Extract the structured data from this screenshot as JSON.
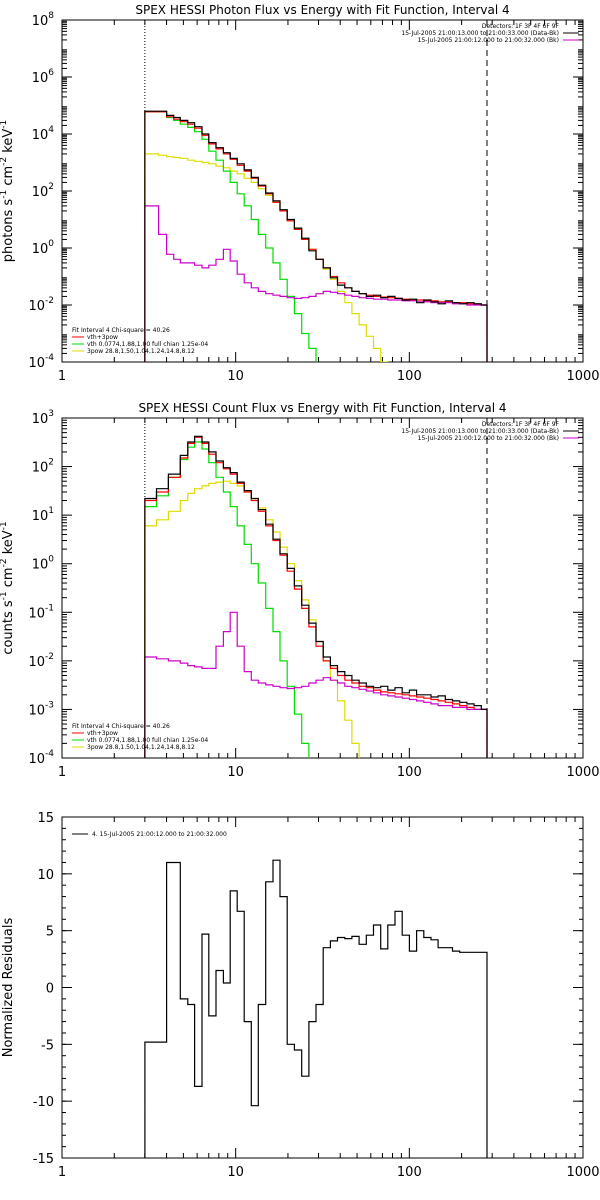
{
  "chart_data": [
    {
      "type": "line",
      "title": "SPEX HESSI Photon Flux vs Energy with Fit Function, Interval 4",
      "ylabel_parts": [
        "photons s",
        "-1",
        " cm",
        "-2",
        " keV",
        "-1"
      ],
      "xscale": "log",
      "yscale": "log",
      "xlim": [
        1,
        1000
      ],
      "ylim": [
        0.0001,
        100000000
      ],
      "x_ticks": [
        {
          "v": 1,
          "label": "1"
        },
        {
          "v": 10,
          "label": "10"
        },
        {
          "v": 100,
          "label": "100"
        },
        {
          "v": 1000,
          "label": "1000"
        }
      ],
      "y_ticks": [
        {
          "v": 0.0001,
          "b": "10",
          "e": "-4"
        },
        {
          "v": 0.01,
          "b": "10",
          "e": "-2"
        },
        {
          "v": 1,
          "b": "10",
          "e": "0"
        },
        {
          "v": 100,
          "b": "10",
          "e": "2"
        },
        {
          "v": 10000,
          "b": "10",
          "e": "4"
        },
        {
          "v": 1000000,
          "b": "10",
          "e": "6"
        },
        {
          "v": 100000000,
          "b": "10",
          "e": "8"
        }
      ],
      "vlines": [
        {
          "x": 3,
          "style": "dotted"
        },
        {
          "x": 280,
          "style": "dashed"
        }
      ],
      "legend_right": {
        "lines": [
          {
            "text": "Detectors: 1F 3F 4F 6F 9F",
            "color": null
          },
          {
            "text": "15-Jul-2005 21:00:13.000 to 21:00:33.000 (Data-Bk)",
            "color": "#000000"
          },
          {
            "text": "15-Jul-2005 21:00:12.000 to 21:00:32.000 (Bk)",
            "color": "#cc00cc"
          }
        ]
      },
      "legend_left": {
        "header": "Fit Interval 4   Chi-square = 40.26",
        "lines": [
          {
            "text": "vth+3pow",
            "color": "#ff0000"
          },
          {
            "text": "vth 0.0774,1.88,1.00  full chian 1.25e-04",
            "color": "#00dd00"
          },
          {
            "text": "3pow 28.8,1.50,1.04,1.24,14.8,8.12",
            "color": "#dddd00"
          }
        ]
      },
      "x_edges": [
        3.0,
        3.3,
        3.6,
        4.0,
        4.4,
        4.8,
        5.3,
        5.8,
        6.4,
        7.0,
        7.7,
        8.5,
        9.3,
        10.2,
        11.2,
        12.3,
        13.5,
        14.9,
        16.4,
        18.0,
        19.8,
        21.8,
        24.0,
        26.4,
        29.0,
        31.9,
        35.1,
        38.6,
        42.5,
        46.7,
        51.4,
        56.5,
        62.2,
        68.4,
        75.2,
        82.7,
        91.0,
        100.1,
        110.1,
        121.1,
        133.2,
        146.5,
        161.2,
        177.3,
        195.0,
        214.5,
        236.0,
        259.6,
        280.0
      ],
      "series": [
        {
          "name": "vth+3pow",
          "color": "#ff0000",
          "values": [
            60000,
            60000,
            60000,
            40000,
            33000,
            27000,
            22000,
            16000,
            9000,
            4500,
            3000,
            2000,
            1300,
            800,
            500,
            280,
            150,
            80,
            40,
            20,
            9,
            4.5,
            2,
            0.9,
            0.4,
            0.2,
            0.1,
            0.06,
            0.04,
            0.03,
            0.025,
            0.022,
            0.02,
            0.019,
            0.018,
            0.017,
            0.016,
            0.015,
            0.015,
            0.014,
            0.014,
            0.013,
            0.013,
            0.012,
            0.012,
            0.011,
            0.011,
            0.01
          ]
        },
        {
          "name": "data",
          "color": "#000000",
          "values": [
            63000,
            63000,
            63000,
            45000,
            38000,
            30000,
            25000,
            18000,
            10000,
            5000,
            3300,
            2200,
            1400,
            900,
            550,
            300,
            160,
            85,
            45,
            22,
            10,
            5,
            2.2,
            0.8,
            0.4,
            0.2,
            0.09,
            0.05,
            0.04,
            0.03,
            0.025,
            0.02,
            0.022,
            0.018,
            0.02,
            0.017,
            0.015,
            0.016,
            0.012,
            0.015,
            0.013,
            0.011,
            0.014,
            0.012,
            0.011,
            0.012,
            0.011,
            0.01
          ]
        },
        {
          "name": "vth",
          "color": "#00dd00",
          "values": [
            60000,
            60000,
            60000,
            38000,
            30000,
            22000,
            17000,
            12000,
            6500,
            2500,
            1200,
            500,
            200,
            80,
            30,
            10,
            3,
            1,
            0.3,
            0.08,
            0.02,
            0.005,
            0.001,
            0.0003,
            5e-05
          ]
        },
        {
          "name": "3pow",
          "color": "#dddd00",
          "values": [
            2000,
            2000,
            1800,
            1600,
            1500,
            1400,
            1200,
            1100,
            1000,
            900,
            750,
            650,
            500,
            400,
            280,
            200,
            120,
            70,
            40,
            20,
            9,
            4.5,
            2,
            0.9,
            0.4,
            0.18,
            0.08,
            0.03,
            0.012,
            0.005,
            0.002,
            0.0008,
            0.0003,
            0.0001,
            4e-05
          ]
        },
        {
          "name": "background",
          "color": "#cc00cc",
          "values": [
            30,
            30,
            3,
            0.6,
            0.4,
            0.3,
            0.3,
            0.25,
            0.2,
            0.25,
            0.4,
            0.9,
            0.35,
            0.12,
            0.06,
            0.04,
            0.03,
            0.025,
            0.022,
            0.02,
            0.018,
            0.017,
            0.018,
            0.02,
            0.025,
            0.03,
            0.028,
            0.025,
            0.022,
            0.02,
            0.018,
            0.017,
            0.016,
            0.016,
            0.015,
            0.015,
            0.014,
            0.014,
            0.013,
            0.013,
            0.012,
            0.012,
            0.012,
            0.011,
            0.011,
            0.01,
            0.01,
            0.01
          ]
        }
      ]
    },
    {
      "type": "line",
      "title": "SPEX HESSI Count Flux vs Energy with Fit Function, Interval 4",
      "ylabel_parts": [
        "counts s",
        "-1",
        " cm",
        "-2",
        " keV",
        "-1"
      ],
      "xscale": "log",
      "yscale": "log",
      "xlim": [
        1,
        1000
      ],
      "ylim": [
        0.0001,
        1000
      ],
      "x_ticks": [
        {
          "v": 1,
          "label": "1"
        },
        {
          "v": 10,
          "label": "10"
        },
        {
          "v": 100,
          "label": "100"
        },
        {
          "v": 1000,
          "label": "1000"
        }
      ],
      "y_ticks": [
        {
          "v": 0.0001,
          "b": "10",
          "e": "-4"
        },
        {
          "v": 0.001,
          "b": "10",
          "e": "-3"
        },
        {
          "v": 0.01,
          "b": "10",
          "e": "-2"
        },
        {
          "v": 0.1,
          "b": "10",
          "e": "-1"
        },
        {
          "v": 1,
          "b": "10",
          "e": "0"
        },
        {
          "v": 10,
          "b": "10",
          "e": "1"
        },
        {
          "v": 100,
          "b": "10",
          "e": "2"
        },
        {
          "v": 1000,
          "b": "10",
          "e": "3"
        }
      ],
      "vlines": [
        {
          "x": 3,
          "style": "dotted"
        },
        {
          "x": 280,
          "style": "dashed"
        }
      ],
      "legend_right": {
        "lines": [
          {
            "text": "Detectors: 1F 3F 4F 6F 9F",
            "color": null
          },
          {
            "text": "15-Jul-2005 21:00:13.000 to 21:00:33.000 (Data-Bk)",
            "color": "#000000"
          },
          {
            "text": "15-Jul-2005 21:00:12.000 to 21:00:32.000 (Bk)",
            "color": "#cc00cc"
          }
        ]
      },
      "legend_left": {
        "header": "Fit Interval 4   Chi-square = 40.26",
        "lines": [
          {
            "text": "vth+3pow",
            "color": "#ff0000"
          },
          {
            "text": "vth 0.0774,1.88,1.00  full chian 1.25e-04",
            "color": "#00dd00"
          },
          {
            "text": "3pow 28.8,1.50,1.04,1.24,14.8,8.12",
            "color": "#dddd00"
          }
        ]
      },
      "x_edges": [
        3.0,
        3.5,
        4.1,
        4.8,
        5.3,
        5.8,
        6.4,
        7.0,
        7.7,
        8.5,
        9.3,
        10.2,
        11.2,
        12.3,
        13.5,
        14.9,
        16.4,
        18.0,
        19.8,
        21.8,
        24.0,
        26.4,
        29.0,
        31.9,
        35.1,
        38.6,
        42.5,
        46.7,
        51.4,
        56.5,
        62.2,
        68.4,
        75.2,
        82.7,
        91.0,
        100.1,
        110.1,
        121.1,
        133.2,
        146.5,
        161.2,
        177.3,
        195.0,
        214.5,
        236.0,
        259.6,
        280.0
      ],
      "series": [
        {
          "name": "vth+3pow",
          "color": "#ff0000",
          "values": [
            20,
            30,
            60,
            150,
            300,
            400,
            300,
            180,
            120,
            90,
            70,
            45,
            30,
            20,
            12,
            6,
            3,
            1.5,
            0.7,
            0.3,
            0.12,
            0.05,
            0.02,
            0.01,
            0.007,
            0.005,
            0.004,
            0.0035,
            0.003,
            0.0028,
            0.0025,
            0.0023,
            0.0022,
            0.0021,
            0.002,
            0.0019,
            0.0018,
            0.0017,
            0.0016,
            0.0015,
            0.0014,
            0.0013,
            0.0012,
            0.0011,
            0.001,
            0.001
          ]
        },
        {
          "name": "data",
          "color": "#000000",
          "values": [
            22,
            35,
            70,
            170,
            320,
            420,
            320,
            200,
            130,
            95,
            75,
            48,
            32,
            22,
            13,
            6.5,
            3.2,
            1.6,
            0.8,
            0.35,
            0.14,
            0.06,
            0.025,
            0.012,
            0.008,
            0.006,
            0.005,
            0.004,
            0.0035,
            0.003,
            0.0028,
            0.003,
            0.0025,
            0.0028,
            0.0022,
            0.0025,
            0.002,
            0.002,
            0.0018,
            0.0019,
            0.0016,
            0.0015,
            0.0014,
            0.0013,
            0.0012,
            0.001
          ]
        },
        {
          "name": "vth",
          "color": "#00dd00",
          "values": [
            15,
            25,
            60,
            140,
            250,
            320,
            230,
            120,
            60,
            30,
            15,
            6,
            2.5,
            1,
            0.4,
            0.12,
            0.04,
            0.01,
            0.003,
            0.0008,
            0.0002,
            5e-05
          ]
        },
        {
          "name": "3pow",
          "color": "#dddd00",
          "values": [
            6,
            8,
            12,
            20,
            28,
            35,
            40,
            45,
            48,
            50,
            45,
            40,
            30,
            22,
            14,
            8,
            4.5,
            2.2,
            1,
            0.45,
            0.18,
            0.07,
            0.025,
            0.01,
            0.004,
            0.0015,
            0.0006,
            0.0002,
            6e-05
          ]
        },
        {
          "name": "background",
          "color": "#cc00cc",
          "values": [
            0.012,
            0.011,
            0.01,
            0.009,
            0.008,
            0.0075,
            0.007,
            0.007,
            0.02,
            0.04,
            0.1,
            0.02,
            0.006,
            0.004,
            0.0035,
            0.0032,
            0.003,
            0.0028,
            0.0027,
            0.0028,
            0.003,
            0.0035,
            0.004,
            0.0045,
            0.004,
            0.0035,
            0.003,
            0.0028,
            0.0026,
            0.0024,
            0.0022,
            0.002,
            0.0019,
            0.0018,
            0.0017,
            0.0016,
            0.0015,
            0.0014,
            0.0013,
            0.0012,
            0.0012,
            0.0011,
            0.0011,
            0.001,
            0.001,
            0.001
          ]
        }
      ]
    },
    {
      "type": "line",
      "title": "",
      "ylabel": "Normalized Residuals",
      "xscale": "log",
      "yscale": "linear",
      "xlim": [
        1,
        1000
      ],
      "ylim": [
        -15,
        15
      ],
      "x_ticks": [
        {
          "v": 1,
          "label": "1"
        },
        {
          "v": 10,
          "label": "10"
        },
        {
          "v": 100,
          "label": "100"
        },
        {
          "v": 1000,
          "label": "1000"
        }
      ],
      "y_ticks": [
        {
          "v": -15,
          "label": "-15"
        },
        {
          "v": -10,
          "label": "-10"
        },
        {
          "v": -5,
          "label": "-5"
        },
        {
          "v": 0,
          "label": "0"
        },
        {
          "v": 5,
          "label": "5"
        },
        {
          "v": 10,
          "label": "10"
        },
        {
          "v": 15,
          "label": "15"
        }
      ],
      "legend": "4. 15-Jul-2005 21:00:12.000 to 21:00:32.000",
      "x_edges": [
        3.0,
        4.0,
        4.8,
        5.3,
        5.8,
        6.4,
        7.0,
        7.7,
        8.5,
        9.3,
        10.2,
        11.2,
        12.3,
        13.5,
        14.9,
        16.4,
        18.0,
        19.8,
        21.8,
        24.0,
        26.4,
        29.0,
        31.9,
        35.1,
        38.6,
        42.5,
        46.7,
        51.4,
        56.5,
        62.2,
        68.4,
        75.2,
        82.7,
        91.0,
        100.1,
        110.1,
        121.1,
        133.2,
        146.5,
        161.2,
        177.3,
        195.0,
        214.5,
        236.0,
        259.6,
        280.0
      ],
      "series": [
        {
          "name": "residuals",
          "color": "#000000",
          "values": [
            -4.8,
            11.0,
            -1.0,
            -1.5,
            -8.7,
            4.7,
            -2.5,
            1.5,
            0.4,
            8.5,
            6.7,
            -3.0,
            -10.4,
            -1.5,
            9.3,
            11.2,
            8.0,
            -5.0,
            -5.5,
            -7.8,
            -3.0,
            -1.5,
            3.5,
            4.1,
            4.4,
            4.3,
            4.5,
            3.8,
            4.6,
            5.5,
            3.4,
            5.5,
            6.7,
            4.6,
            3.2,
            5.0,
            4.4,
            4.2,
            3.5,
            3.5,
            3.2,
            3.1,
            3.1,
            3.1,
            3.1
          ]
        }
      ]
    }
  ]
}
